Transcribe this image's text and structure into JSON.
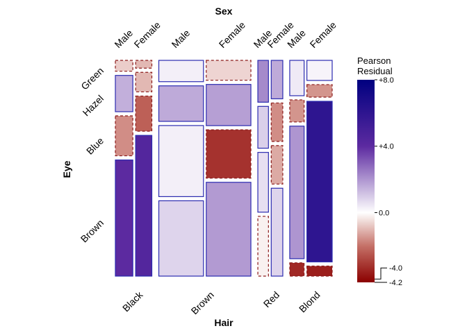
{
  "chart_data": {
    "type": "mosaic",
    "title": "",
    "x_axis_title": "Hair",
    "y_axis_title": "Eye",
    "top_axis_title": "Sex",
    "hair": [
      "Black",
      "Brown",
      "Red",
      "Blond"
    ],
    "eye": [
      "Brown",
      "Blue",
      "Hazel",
      "Green"
    ],
    "sex": [
      "Male",
      "Female"
    ],
    "counts": {
      "Black": {
        "Male": {
          "Brown": 32,
          "Blue": 11,
          "Hazel": 10,
          "Green": 3
        },
        "Female": {
          "Brown": 36,
          "Blue": 9,
          "Hazel": 5,
          "Green": 2
        }
      },
      "Brown": {
        "Male": {
          "Brown": 53,
          "Blue": 50,
          "Hazel": 25,
          "Green": 15
        },
        "Female": {
          "Brown": 66,
          "Blue": 34,
          "Hazel": 29,
          "Green": 14
        }
      },
      "Red": {
        "Male": {
          "Brown": 10,
          "Blue": 10,
          "Hazel": 7,
          "Green": 7
        },
        "Female": {
          "Brown": 16,
          "Blue": 7,
          "Hazel": 7,
          "Green": 7
        }
      },
      "Blond": {
        "Male": {
          "Brown": 3,
          "Blue": 30,
          "Hazel": 5,
          "Green": 8
        },
        "Female": {
          "Brown": 4,
          "Blue": 64,
          "Hazel": 5,
          "Green": 8
        }
      }
    },
    "residuals": {
      "Black": {
        "Male": {
          "Brown": 4.0,
          "Blue": -1.6,
          "Hazel": 1.5,
          "Green": -0.7
        },
        "Female": {
          "Brown": 4.4,
          "Blue": -2.3,
          "Hazel": -1.0,
          "Green": -1.0
        }
      },
      "Brown": {
        "Male": {
          "Brown": 0.8,
          "Blue": 0.3,
          "Hazel": 1.6,
          "Green": 0.3
        },
        "Female": {
          "Brown": 1.9,
          "Blue": -3.2,
          "Hazel": 1.8,
          "Green": -0.6
        }
      },
      "Red": {
        "Male": {
          "Brown": -0.2,
          "Blue": 0.6,
          "Hazel": 0.9,
          "Green": 2.2
        },
        "Female": {
          "Brown": 0.8,
          "Blue": -1.2,
          "Hazel": -1.6,
          "Green": 1.6
        }
      },
      "Blond": {
        "Male": {
          "Brown": -3.4,
          "Blue": 2.0,
          "Hazel": -1.5,
          "Green": 0.4
        },
        "Female": {
          "Brown": -3.6,
          "Blue": 6.0,
          "Hazel": -1.5,
          "Green": 0.2
        }
      }
    },
    "legend": {
      "title_lines": [
        "Pearson",
        "Residual"
      ],
      "min": -4.2,
      "max": 8.0,
      "ticks": [
        {
          "value": 8.0,
          "label": "+8.0"
        },
        {
          "value": 4.0,
          "label": "+4.0"
        },
        {
          "value": 0.0,
          "label": "0.0"
        },
        {
          "value": -4.0,
          "label": "-4.0"
        },
        {
          "value": -4.2,
          "label": "-4.2"
        }
      ]
    },
    "colors": {
      "positive_border": "#2b2bb0",
      "negative_border": "#8b1a1a",
      "positive_max": "#000080",
      "negative_max": "#8b0000",
      "white": "#ffffff"
    }
  }
}
